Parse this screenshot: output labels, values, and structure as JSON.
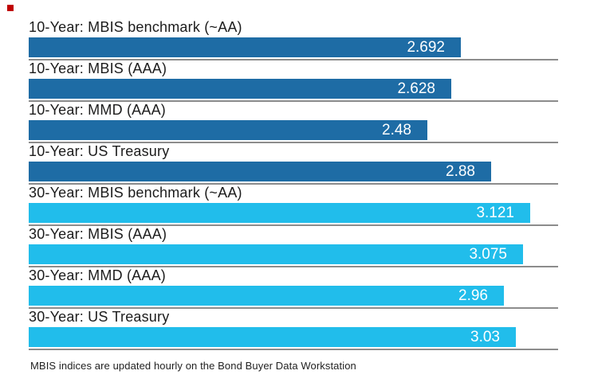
{
  "chart_data": {
    "type": "bar",
    "orientation": "horizontal",
    "title": "",
    "categories": [
      "10-Year: MBIS benchmark (~AA)",
      "10-Year: MBIS (AAA)",
      "10-Year: MMD (AAA)",
      "10-Year: US Treasury",
      "30-Year: MBIS benchmark (~AA)",
      "30-Year: MBIS (AAA)",
      "30-Year: MMD (AAA)",
      "30-Year: US Treasury"
    ],
    "values": [
      2.692,
      2.628,
      2.48,
      2.88,
      3.121,
      3.075,
      2.96,
      3.03
    ],
    "value_labels": [
      "2.692",
      "2.628",
      "2.48",
      "2.88",
      "3.121",
      "3.075",
      "2.96",
      "3.03"
    ],
    "bar_colors": [
      "#1E6CA5",
      "#1E6CA5",
      "#1E6CA5",
      "#1E6CA5",
      "#21BDEB",
      "#21BDEB",
      "#21BDEB",
      "#21BDEB"
    ],
    "groups": [
      {
        "name": "10-Year",
        "color": "#1E6CA5"
      },
      {
        "name": "30-Year",
        "color": "#21BDEB"
      }
    ],
    "xlim": [
      0,
      3.3
    ],
    "grid": false,
    "legend": "none",
    "value_label_position": "inside-right",
    "footnote": "MBIS indices are updated hourly on the Bond Buyer Data Workstation"
  },
  "footer": {
    "note": "MBIS indices are updated hourly on the Bond Buyer Data Workstation"
  },
  "colors": {
    "background": "#FFFFFF",
    "bar_dark_blue": "#1E6CA5",
    "bar_light_blue": "#21BDEB",
    "separator_line": "#8C8C8C",
    "label_text": "#1C1C1C",
    "value_text": "#FFFFFF",
    "marker_red": "#C00000"
  }
}
